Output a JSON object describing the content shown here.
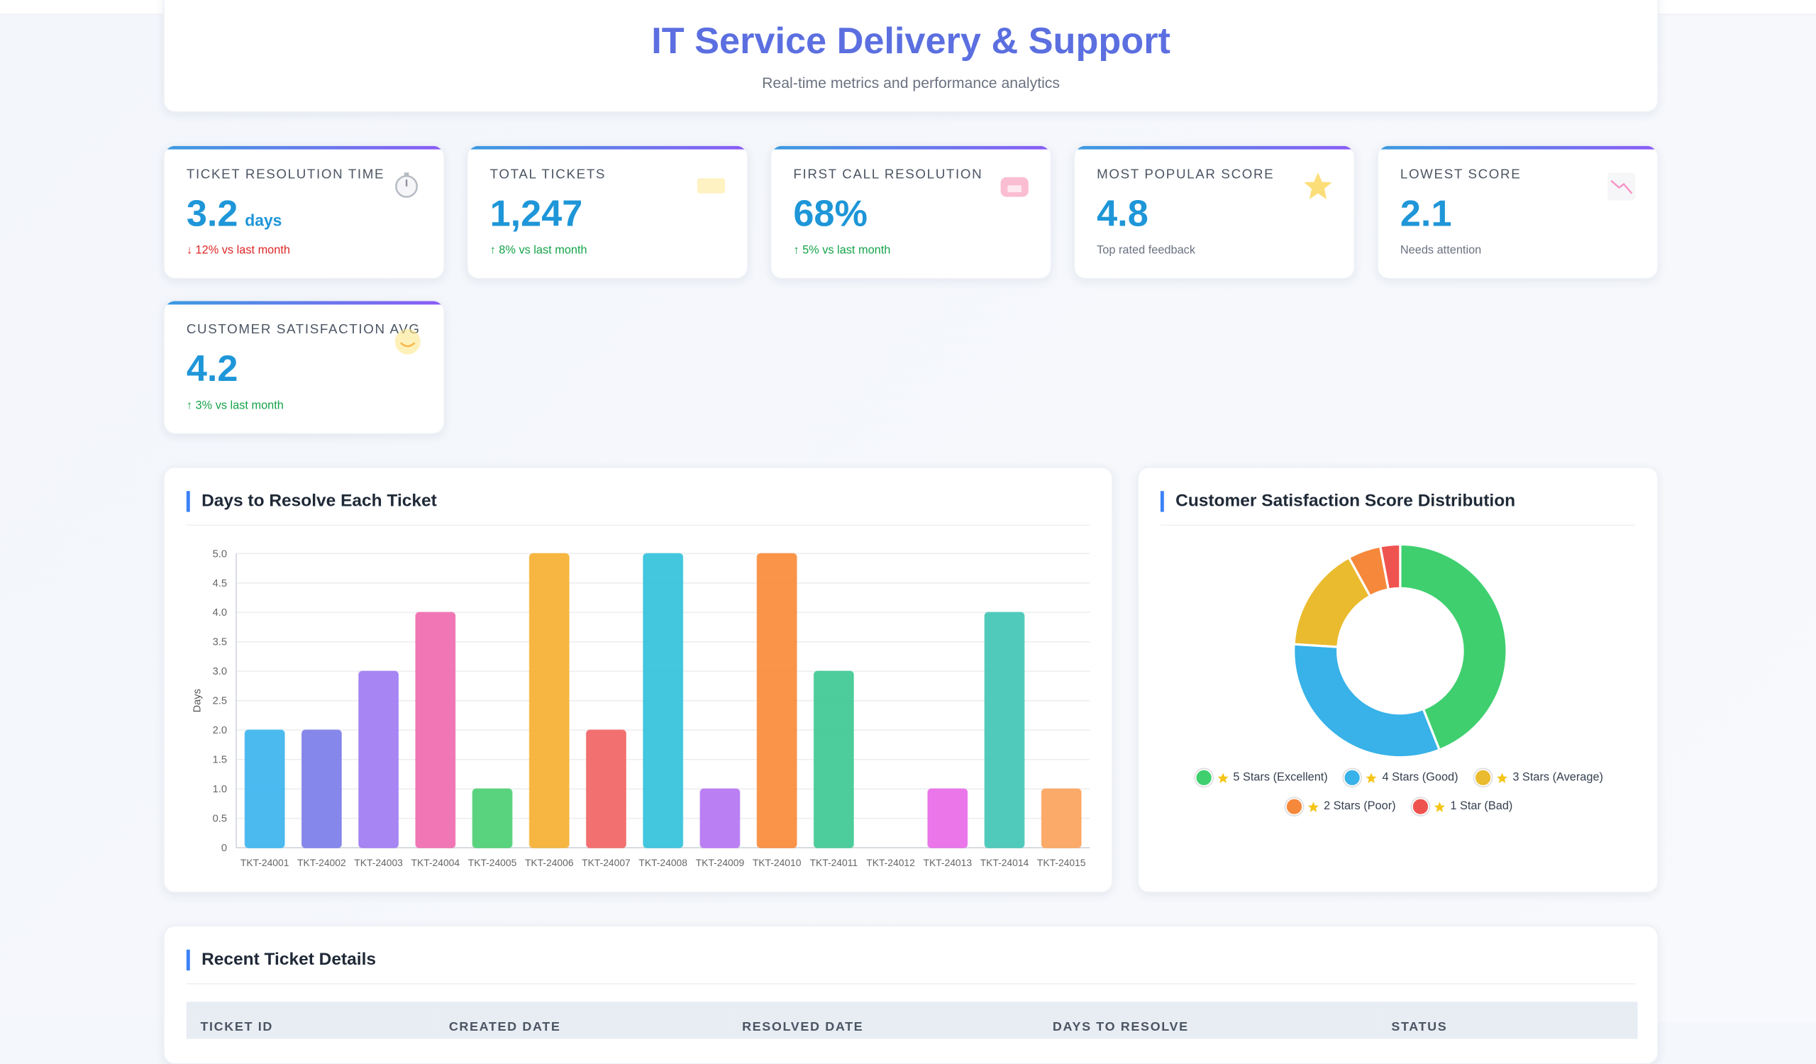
{
  "header": {
    "title": "IT Service Delivery & Support",
    "subtitle": "Real-time metrics and performance analytics"
  },
  "kpis": [
    {
      "label": "TICKET RESOLUTION TIME",
      "value": "3.2",
      "unit": "days",
      "trend": "↓ 12% vs last month",
      "trend_color": "#dc2626"
    },
    {
      "label": "TOTAL TICKETS",
      "value": "1,247",
      "trend": "↑ 8% vs last month",
      "trend_color": "#16a34a"
    },
    {
      "label": "FIRST CALL RESOLUTION",
      "value": "68%",
      "trend": "↑ 5% vs last month",
      "trend_color": "#16a34a"
    },
    {
      "label": "MOST POPULAR SCORE",
      "value": "4.8",
      "note": "Top rated feedback"
    },
    {
      "label": "LOWEST SCORE",
      "value": "2.1",
      "note": "Needs attention"
    },
    {
      "label": "CUSTOMER SATISFACTION AVG",
      "value": "4.2",
      "trend": "↑ 3% vs last month",
      "trend_color": "#16a34a"
    }
  ],
  "chart_data": [
    {
      "type": "bar",
      "title": "Days to Resolve Each Ticket",
      "y_label": "Days",
      "categories": [
        "TKT-24001",
        "TKT-24002",
        "TKT-24003",
        "TKT-24004",
        "TKT-24005",
        "TKT-24006",
        "TKT-24007",
        "TKT-24008",
        "TKT-24009",
        "TKT-24010",
        "TKT-24011",
        "TKT-24012",
        "TKT-24013",
        "TKT-24014",
        "TKT-24015"
      ],
      "values": [
        2,
        2,
        3,
        4,
        1,
        5,
        2,
        5,
        1,
        5,
        3,
        0,
        1,
        4,
        1
      ],
      "colors": [
        "#3bb4ee",
        "#7c7de8",
        "#a07bf2",
        "#f06aaf",
        "#4ccf73",
        "#f5b031",
        "#f26464",
        "#33c2dc",
        "#b475f2",
        "#f98b3a",
        "#3ec993",
        "#60a5fa",
        "#e86ae8",
        "#41c6b5",
        "#fba35c"
      ],
      "ylim": [
        0,
        5
      ],
      "yticks": [
        0,
        0.5,
        {
          "value": 1,
          "label": "1.0"
        },
        1.5,
        {
          "value": 2,
          "label": "2.0"
        },
        2.5,
        {
          "value": 3,
          "label": "3.0"
        },
        3.5,
        {
          "value": 4,
          "label": "4.0"
        },
        4.5,
        {
          "value": 5,
          "label": "5.0"
        }
      ],
      "grid": true
    },
    {
      "type": "pie",
      "title": "Customer Satisfaction Score Distribution",
      "categories": [
        "5 Stars (Excellent)",
        "4 Stars (Good)",
        "3 Stars (Average)",
        "2 Stars (Poor)",
        "1 Star (Bad)"
      ],
      "values": [
        44,
        32,
        16,
        5,
        3
      ],
      "colors": [
        "#3fcf6f",
        "#38b2e8",
        "#eabb2e",
        "#f5883a",
        "#ef5350"
      ]
    }
  ],
  "table": {
    "title": "Recent Ticket Details",
    "columns": [
      "TICKET ID",
      "CREATED DATE",
      "RESOLVED DATE",
      "DAYS TO RESOLVE",
      "STATUS"
    ]
  }
}
